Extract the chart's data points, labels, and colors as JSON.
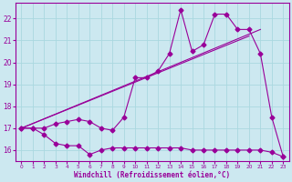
{
  "xlabel": "Windchill (Refroidissement éolien,°C)",
  "bg_color": "#cce8f0",
  "line_color": "#990099",
  "grid_color": "#aad8e0",
  "xlim": [
    -0.5,
    23.5
  ],
  "ylim": [
    15.5,
    22.7
  ],
  "yticks": [
    16,
    17,
    18,
    19,
    20,
    21,
    22
  ],
  "xticks": [
    0,
    1,
    2,
    3,
    4,
    5,
    6,
    7,
    8,
    9,
    10,
    11,
    12,
    13,
    14,
    15,
    16,
    17,
    18,
    19,
    20,
    21,
    22,
    23
  ],
  "series1_x": [
    0,
    1,
    2,
    3,
    4,
    5,
    6,
    7,
    8,
    9,
    10,
    11,
    12,
    13,
    14,
    15,
    16,
    17,
    18,
    19,
    20,
    21,
    22,
    23
  ],
  "series1_y": [
    17.0,
    17.0,
    16.7,
    16.3,
    16.2,
    16.2,
    15.8,
    16.0,
    16.1,
    16.1,
    16.1,
    16.1,
    16.1,
    16.1,
    16.1,
    16.0,
    16.0,
    16.0,
    16.0,
    16.0,
    16.0,
    16.0,
    15.9,
    15.7
  ],
  "series2_x": [
    0,
    1,
    2,
    3,
    4,
    5,
    6,
    7,
    8,
    9,
    10,
    11,
    12,
    13,
    14,
    15,
    16,
    17,
    18,
    19,
    20,
    21,
    22,
    23
  ],
  "series2_y": [
    17.0,
    17.0,
    17.0,
    17.2,
    17.3,
    17.4,
    17.3,
    17.0,
    16.9,
    17.5,
    19.3,
    19.3,
    19.6,
    20.4,
    22.4,
    20.5,
    20.8,
    22.2,
    22.2,
    21.5,
    21.5,
    20.4,
    17.5,
    15.7
  ],
  "trend1_x": [
    0,
    20
  ],
  "trend1_y": [
    17.0,
    21.2
  ],
  "trend2_x": [
    0,
    21
  ],
  "trend2_y": [
    17.0,
    21.5
  ]
}
